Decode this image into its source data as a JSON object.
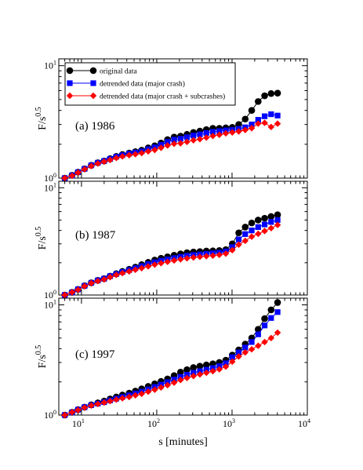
{
  "chart_data": {
    "type": "scatter",
    "xlabel": "s [minutes]",
    "ylabel_main": "F/s",
    "ylabel_exponent": "0.5",
    "x_scale": "log",
    "y_scale": "log",
    "xlim": [
      5,
      10000
    ],
    "x_ticks": [
      {
        "base": "10",
        "exp": "1",
        "value": 10
      },
      {
        "base": "10",
        "exp": "2",
        "value": 100
      },
      {
        "base": "10",
        "exp": "3",
        "value": 1000
      },
      {
        "base": "10",
        "exp": "4",
        "value": 10000
      }
    ],
    "y_ticks": [
      {
        "base": "10",
        "exp": "0",
        "value": 1
      },
      {
        "base": "10",
        "exp": "1",
        "value": 10
      }
    ],
    "ylim": [
      1,
      11.5
    ],
    "legend": {
      "placement": "top-left",
      "entries": [
        "original data",
        "detrended data (major crash)",
        "detrended data (major crash + subcrashes)"
      ]
    },
    "series_styles": [
      {
        "name": "original data",
        "color": "#000000",
        "marker": "circle"
      },
      {
        "name": "detrended data (major crash)",
        "color": "#0000ff",
        "marker": "square"
      },
      {
        "name": "detrended data (major crash + subcrashes)",
        "color": "#ff0000",
        "marker": "diamond"
      }
    ],
    "x": [
      6,
      7.5,
      9,
      11,
      13.5,
      16.5,
      20,
      24,
      29,
      35,
      43,
      52,
      63,
      77,
      94,
      114,
      139,
      170,
      207,
      252,
      307,
      374,
      456,
      556,
      678,
      826,
      1007,
      1227,
      1496,
      1824,
      2223,
      2710,
      3303,
      4027
    ],
    "panels": [
      {
        "label": "(a) 1986",
        "series": [
          {
            "name": "original data",
            "values": [
              1.0,
              1.06,
              1.13,
              1.21,
              1.3,
              1.37,
              1.42,
              1.49,
              1.56,
              1.62,
              1.67,
              1.72,
              1.77,
              1.86,
              1.94,
              2.05,
              2.2,
              2.32,
              2.36,
              2.45,
              2.55,
              2.62,
              2.7,
              2.77,
              2.77,
              2.8,
              2.83,
              3.0,
              3.35,
              4.0,
              4.8,
              5.4,
              5.65,
              5.7
            ]
          },
          {
            "name": "detrended data (major crash)",
            "values": [
              1.0,
              1.06,
              1.13,
              1.21,
              1.3,
              1.37,
              1.42,
              1.48,
              1.55,
              1.6,
              1.65,
              1.69,
              1.73,
              1.81,
              1.88,
              1.98,
              2.1,
              2.2,
              2.24,
              2.31,
              2.39,
              2.45,
              2.52,
              2.58,
              2.62,
              2.66,
              2.68,
              2.74,
              2.83,
              3.0,
              3.3,
              3.55,
              3.7,
              3.6
            ]
          },
          {
            "name": "detrended data (major crash + subcrashes)",
            "values": [
              1.0,
              1.05,
              1.12,
              1.2,
              1.28,
              1.35,
              1.4,
              1.45,
              1.51,
              1.56,
              1.6,
              1.63,
              1.67,
              1.73,
              1.78,
              1.86,
              1.95,
              2.02,
              2.04,
              2.1,
              2.17,
              2.22,
              2.29,
              2.37,
              2.43,
              2.5,
              2.55,
              2.6,
              2.68,
              2.78,
              3.05,
              3.1,
              2.85,
              3.05
            ]
          }
        ]
      },
      {
        "label": "(b) 1987",
        "series": [
          {
            "name": "original data",
            "values": [
              1.0,
              1.06,
              1.13,
              1.22,
              1.3,
              1.37,
              1.42,
              1.5,
              1.58,
              1.66,
              1.74,
              1.82,
              1.92,
              2.02,
              2.12,
              2.2,
              2.27,
              2.35,
              2.42,
              2.48,
              2.52,
              2.54,
              2.57,
              2.58,
              2.6,
              2.65,
              3.0,
              3.8,
              4.3,
              4.7,
              5.0,
              5.2,
              5.4,
              5.6
            ]
          },
          {
            "name": "detrended data (major crash)",
            "values": [
              1.0,
              1.06,
              1.13,
              1.22,
              1.3,
              1.37,
              1.42,
              1.5,
              1.57,
              1.64,
              1.71,
              1.78,
              1.86,
              1.94,
              2.02,
              2.09,
              2.15,
              2.21,
              2.27,
              2.32,
              2.36,
              2.39,
              2.42,
              2.45,
              2.48,
              2.55,
              2.8,
              3.3,
              3.7,
              4.0,
              4.3,
              4.55,
              4.8,
              5.0
            ]
          },
          {
            "name": "detrended data (major crash + subcrashes)",
            "values": [
              1.0,
              1.06,
              1.12,
              1.21,
              1.29,
              1.35,
              1.4,
              1.47,
              1.54,
              1.6,
              1.66,
              1.72,
              1.78,
              1.85,
              1.92,
              1.98,
              2.04,
              2.1,
              2.15,
              2.2,
              2.24,
              2.27,
              2.3,
              2.33,
              2.37,
              2.43,
              2.62,
              2.95,
              3.2,
              3.5,
              3.72,
              3.95,
              4.2,
              4.5
            ]
          }
        ]
      },
      {
        "label": "(c) 1997",
        "series": [
          {
            "name": "original data",
            "values": [
              1.0,
              1.06,
              1.12,
              1.18,
              1.24,
              1.29,
              1.34,
              1.4,
              1.46,
              1.52,
              1.58,
              1.65,
              1.73,
              1.82,
              1.92,
              2.02,
              2.13,
              2.28,
              2.45,
              2.58,
              2.7,
              2.78,
              2.85,
              2.92,
              3.0,
              3.15,
              3.5,
              3.9,
              4.4,
              5.0,
              6.0,
              7.5,
              9.0,
              10.5
            ]
          },
          {
            "name": "detrended data (major crash)",
            "values": [
              1.0,
              1.06,
              1.12,
              1.18,
              1.23,
              1.27,
              1.31,
              1.36,
              1.41,
              1.46,
              1.51,
              1.57,
              1.63,
              1.71,
              1.8,
              1.89,
              1.99,
              2.1,
              2.22,
              2.32,
              2.42,
              2.5,
              2.58,
              2.67,
              2.78,
              2.95,
              3.35,
              3.7,
              4.1,
              4.6,
              5.4,
              6.5,
              7.6,
              8.6
            ]
          },
          {
            "name": "detrended data (major crash + subcrashes)",
            "values": [
              1.0,
              1.06,
              1.11,
              1.17,
              1.22,
              1.26,
              1.3,
              1.34,
              1.38,
              1.42,
              1.46,
              1.51,
              1.56,
              1.63,
              1.7,
              1.78,
              1.87,
              1.97,
              2.08,
              2.17,
              2.26,
              2.34,
              2.42,
              2.5,
              2.6,
              2.75,
              3.05,
              3.4,
              3.7,
              3.95,
              4.25,
              4.6,
              5.0,
              5.6
            ]
          }
        ]
      }
    ]
  }
}
